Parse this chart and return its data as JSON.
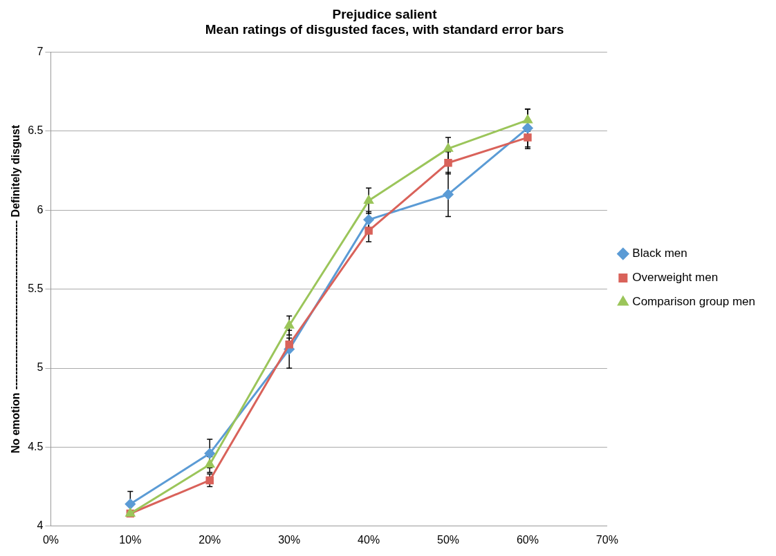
{
  "chart_data": {
    "type": "line",
    "title": [
      "Prejudice salient",
      "Mean ratings of disgusted faces, with standard error bars"
    ],
    "ylabel": "No emotion ---------------------------------------------- Definitely disgust",
    "x": [
      10,
      20,
      30,
      40,
      50,
      60
    ],
    "xlim": [
      0,
      70
    ],
    "xticks": [
      {
        "value": 0,
        "label": "0%"
      },
      {
        "value": 10,
        "label": "10%"
      },
      {
        "value": 20,
        "label": "20%"
      },
      {
        "value": 30,
        "label": "30%"
      },
      {
        "value": 40,
        "label": "40%"
      },
      {
        "value": 50,
        "label": "50%"
      },
      {
        "value": 60,
        "label": "60%"
      },
      {
        "value": 70,
        "label": "70%"
      }
    ],
    "ylim": [
      4,
      7
    ],
    "yticks": [
      4,
      4.5,
      5,
      5.5,
      6,
      6.5,
      7
    ],
    "grid": "y",
    "legend": "right",
    "series": [
      {
        "name": "Black men",
        "color": "#5b9bd5",
        "marker": "diamond",
        "values": [
          4.14,
          4.46,
          5.12,
          5.94,
          6.1,
          6.52
        ],
        "errors": [
          0.08,
          0.09,
          0.12,
          0.05,
          0.14,
          0.12
        ]
      },
      {
        "name": "Overweight men",
        "color": "#d9625a",
        "marker": "square",
        "values": [
          4.08,
          4.29,
          5.15,
          5.87,
          6.3,
          6.46
        ],
        "errors": [
          null,
          0.04,
          0.04,
          0.07,
          0.07,
          0.07
        ]
      },
      {
        "name": "Comparison group men",
        "color": "#9bc55a",
        "marker": "triangle",
        "values": [
          4.08,
          4.39,
          5.27,
          6.06,
          6.39,
          6.57
        ],
        "errors": [
          null,
          0.05,
          0.06,
          0.08,
          0.07,
          0.07
        ]
      }
    ]
  }
}
